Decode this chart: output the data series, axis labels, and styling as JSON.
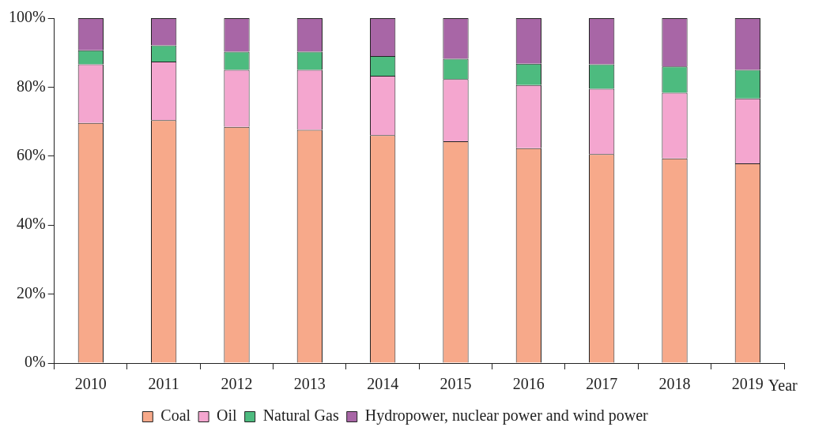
{
  "chart_data": {
    "type": "bar",
    "stacked": true,
    "xlabel": "Year",
    "categories": [
      "2010",
      "2011",
      "2012",
      "2013",
      "2014",
      "2015",
      "2016",
      "2017",
      "2018",
      "2019"
    ],
    "series": [
      {
        "name": "Coal",
        "color": "#f7a98a",
        "values": [
          69.6,
          70.4,
          68.5,
          67.6,
          66.1,
          64.3,
          62.3,
          60.6,
          59.3,
          57.9
        ]
      },
      {
        "name": "Oil",
        "color": "#f4a6cf",
        "values": [
          17.0,
          17.0,
          16.5,
          17.4,
          17.2,
          18.0,
          18.3,
          18.9,
          19.1,
          18.8
        ]
      },
      {
        "name": "Natural Gas",
        "color": "#4dbb7f",
        "values": [
          4.1,
          4.7,
          5.3,
          5.3,
          5.7,
          5.9,
          6.2,
          7.1,
          7.6,
          8.3
        ]
      },
      {
        "name": "Hydropower, nuclear power and wind power",
        "color": "#a866a6",
        "values": [
          9.3,
          7.9,
          9.7,
          9.7,
          11.0,
          11.8,
          13.2,
          13.4,
          14.0,
          15.0
        ]
      }
    ],
    "ylim": [
      0,
      100
    ],
    "yticks": [
      {
        "value": 0,
        "label": "0%"
      },
      {
        "value": 20,
        "label": "20%"
      },
      {
        "value": 40,
        "label": "40%"
      },
      {
        "value": 60,
        "label": "60%"
      },
      {
        "value": 80,
        "label": "80%"
      },
      {
        "value": 100,
        "label": "100%"
      }
    ],
    "grid": false,
    "legend": "bottom"
  }
}
